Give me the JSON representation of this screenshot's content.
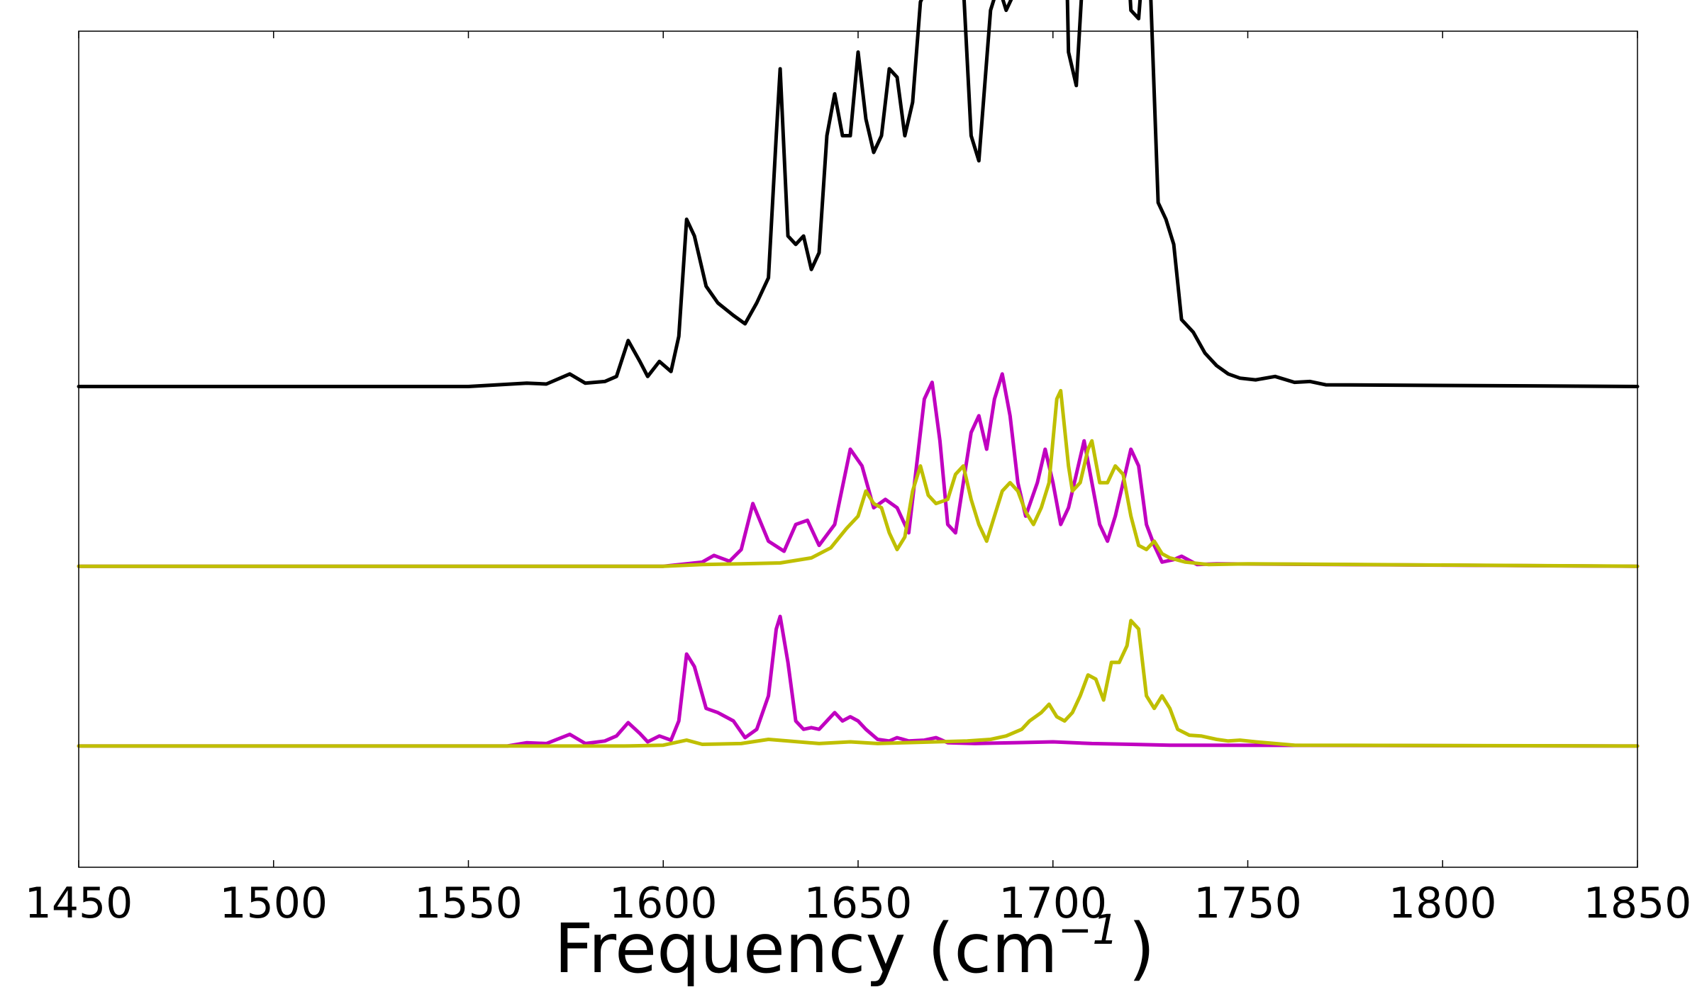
{
  "chart_data": {
    "type": "line",
    "title": "",
    "xlabel": "Frequency (cm",
    "xlabel_superscript": "−1",
    "xlabel_suffix": ")",
    "ylabel": "",
    "xlim": [
      1450,
      1850
    ],
    "ylim": [
      0,
      1
    ],
    "grid": false,
    "legend": "none",
    "x_ticks": [
      "1450",
      "1500",
      "1550",
      "1600",
      "1650",
      "1700",
      "1750",
      "1800",
      "1850"
    ],
    "colors": {
      "total": "#000000",
      "magenta": "#c000c0",
      "olive": "#bfbf00"
    },
    "series": [
      {
        "color": "#000000",
        "panel": "top",
        "baseline": 0.575,
        "points": [
          [
            1450,
            0
          ],
          [
            1550,
            0
          ],
          [
            1565,
            0.004
          ],
          [
            1570,
            0.003
          ],
          [
            1576,
            0.015
          ],
          [
            1580,
            0.004
          ],
          [
            1585,
            0.006
          ],
          [
            1588,
            0.012
          ],
          [
            1591,
            0.055
          ],
          [
            1594,
            0.03
          ],
          [
            1596,
            0.012
          ],
          [
            1599,
            0.03
          ],
          [
            1602,
            0.018
          ],
          [
            1604,
            0.06
          ],
          [
            1606,
            0.2
          ],
          [
            1608,
            0.18
          ],
          [
            1611,
            0.12
          ],
          [
            1614,
            0.1
          ],
          [
            1618,
            0.085
          ],
          [
            1621,
            0.075
          ],
          [
            1624,
            0.1
          ],
          [
            1627,
            0.13
          ],
          [
            1629,
            0.3
          ],
          [
            1630,
            0.38
          ],
          [
            1632,
            0.18
          ],
          [
            1634,
            0.17
          ],
          [
            1636,
            0.18
          ],
          [
            1638,
            0.14
          ],
          [
            1640,
            0.16
          ],
          [
            1642,
            0.3
          ],
          [
            1644,
            0.35
          ],
          [
            1646,
            0.3
          ],
          [
            1648,
            0.3
          ],
          [
            1650,
            0.4
          ],
          [
            1652,
            0.32
          ],
          [
            1654,
            0.28
          ],
          [
            1656,
            0.3
          ],
          [
            1658,
            0.38
          ],
          [
            1660,
            0.37
          ],
          [
            1662,
            0.3
          ],
          [
            1664,
            0.34
          ],
          [
            1666,
            0.46
          ],
          [
            1668,
            0.48
          ],
          [
            1670,
            0.52
          ],
          [
            1673,
            0.55
          ],
          [
            1675,
            0.59
          ],
          [
            1677,
            0.48
          ],
          [
            1679,
            0.3
          ],
          [
            1681,
            0.27
          ],
          [
            1684,
            0.45
          ],
          [
            1686,
            0.48
          ],
          [
            1688,
            0.45
          ],
          [
            1690,
            0.47
          ],
          [
            1693,
            0.5
          ],
          [
            1696,
            0.48
          ],
          [
            1698,
            0.53
          ],
          [
            1700,
            0.95
          ],
          [
            1702,
            0.85
          ],
          [
            1704,
            0.4
          ],
          [
            1706,
            0.36
          ],
          [
            1708,
            0.52
          ],
          [
            1710,
            0.6
          ],
          [
            1712,
            0.63
          ],
          [
            1714,
            0.62
          ],
          [
            1716,
            0.64
          ],
          [
            1718,
            0.61
          ],
          [
            1720,
            0.45
          ],
          [
            1722,
            0.44
          ],
          [
            1723,
            0.5
          ],
          [
            1725,
            0.48
          ],
          [
            1727,
            0.22
          ],
          [
            1729,
            0.2
          ],
          [
            1731,
            0.17
          ],
          [
            1733,
            0.08
          ],
          [
            1736,
            0.065
          ],
          [
            1739,
            0.04
          ],
          [
            1742,
            0.025
          ],
          [
            1745,
            0.015
          ],
          [
            1748,
            0.01
          ],
          [
            1752,
            0.008
          ],
          [
            1757,
            0.012
          ],
          [
            1762,
            0.005
          ],
          [
            1766,
            0.006
          ],
          [
            1770,
            0.002
          ],
          [
            1850,
            0
          ]
        ]
      },
      {
        "color": "#c000c0",
        "panel": "middle",
        "baseline": 0.36,
        "points": [
          [
            1450,
            0
          ],
          [
            1600,
            0
          ],
          [
            1610,
            0.005
          ],
          [
            1613,
            0.013
          ],
          [
            1617,
            0.006
          ],
          [
            1620,
            0.02
          ],
          [
            1623,
            0.075
          ],
          [
            1627,
            0.03
          ],
          [
            1631,
            0.018
          ],
          [
            1634,
            0.05
          ],
          [
            1637,
            0.055
          ],
          [
            1640,
            0.025
          ],
          [
            1644,
            0.05
          ],
          [
            1648,
            0.14
          ],
          [
            1651,
            0.12
          ],
          [
            1654,
            0.07
          ],
          [
            1657,
            0.08
          ],
          [
            1660,
            0.07
          ],
          [
            1663,
            0.04
          ],
          [
            1665,
            0.12
          ],
          [
            1667,
            0.2
          ],
          [
            1669,
            0.22
          ],
          [
            1671,
            0.15
          ],
          [
            1673,
            0.05
          ],
          [
            1675,
            0.04
          ],
          [
            1677,
            0.1
          ],
          [
            1679,
            0.16
          ],
          [
            1681,
            0.18
          ],
          [
            1683,
            0.14
          ],
          [
            1685,
            0.2
          ],
          [
            1687,
            0.23
          ],
          [
            1689,
            0.18
          ],
          [
            1691,
            0.1
          ],
          [
            1693,
            0.06
          ],
          [
            1696,
            0.1
          ],
          [
            1698,
            0.14
          ],
          [
            1700,
            0.1
          ],
          [
            1702,
            0.05
          ],
          [
            1704,
            0.07
          ],
          [
            1706,
            0.11
          ],
          [
            1708,
            0.15
          ],
          [
            1710,
            0.1
          ],
          [
            1712,
            0.05
          ],
          [
            1714,
            0.03
          ],
          [
            1716,
            0.06
          ],
          [
            1718,
            0.1
          ],
          [
            1720,
            0.14
          ],
          [
            1722,
            0.12
          ],
          [
            1724,
            0.05
          ],
          [
            1726,
            0.025
          ],
          [
            1728,
            0.005
          ],
          [
            1731,
            0.008
          ],
          [
            1733,
            0.012
          ],
          [
            1737,
            0.002
          ],
          [
            1742,
            0.003
          ],
          [
            1850,
            0
          ]
        ]
      },
      {
        "color": "#bfbf00",
        "panel": "middle",
        "baseline": 0.36,
        "points": [
          [
            1450,
            0
          ],
          [
            1600,
            0
          ],
          [
            1610,
            0.002
          ],
          [
            1620,
            0.003
          ],
          [
            1630,
            0.004
          ],
          [
            1638,
            0.01
          ],
          [
            1643,
            0.022
          ],
          [
            1647,
            0.045
          ],
          [
            1650,
            0.06
          ],
          [
            1652,
            0.09
          ],
          [
            1654,
            0.075
          ],
          [
            1656,
            0.07
          ],
          [
            1658,
            0.04
          ],
          [
            1660,
            0.02
          ],
          [
            1662,
            0.035
          ],
          [
            1664,
            0.09
          ],
          [
            1666,
            0.12
          ],
          [
            1668,
            0.085
          ],
          [
            1670,
            0.075
          ],
          [
            1673,
            0.08
          ],
          [
            1675,
            0.11
          ],
          [
            1677,
            0.12
          ],
          [
            1679,
            0.08
          ],
          [
            1681,
            0.05
          ],
          [
            1683,
            0.03
          ],
          [
            1685,
            0.06
          ],
          [
            1687,
            0.09
          ],
          [
            1689,
            0.1
          ],
          [
            1691,
            0.09
          ],
          [
            1693,
            0.065
          ],
          [
            1695,
            0.05
          ],
          [
            1697,
            0.07
          ],
          [
            1699,
            0.1
          ],
          [
            1701,
            0.2
          ],
          [
            1702,
            0.21
          ],
          [
            1704,
            0.12
          ],
          [
            1705,
            0.09
          ],
          [
            1707,
            0.1
          ],
          [
            1709,
            0.14
          ],
          [
            1710,
            0.15
          ],
          [
            1712,
            0.1
          ],
          [
            1714,
            0.1
          ],
          [
            1716,
            0.12
          ],
          [
            1718,
            0.11
          ],
          [
            1720,
            0.06
          ],
          [
            1722,
            0.025
          ],
          [
            1724,
            0.02
          ],
          [
            1726,
            0.03
          ],
          [
            1728,
            0.015
          ],
          [
            1730,
            0.01
          ],
          [
            1734,
            0.005
          ],
          [
            1740,
            0.002
          ],
          [
            1750,
            0.003
          ],
          [
            1850,
            0
          ]
        ]
      },
      {
        "color": "#c000c0",
        "panel": "bottom",
        "baseline": 0.145,
        "points": [
          [
            1450,
            0
          ],
          [
            1560,
            0
          ],
          [
            1565,
            0.004
          ],
          [
            1570,
            0.003
          ],
          [
            1576,
            0.014
          ],
          [
            1580,
            0.003
          ],
          [
            1585,
            0.006
          ],
          [
            1588,
            0.012
          ],
          [
            1591,
            0.028
          ],
          [
            1594,
            0.015
          ],
          [
            1596,
            0.005
          ],
          [
            1599,
            0.012
          ],
          [
            1602,
            0.007
          ],
          [
            1604,
            0.03
          ],
          [
            1606,
            0.11
          ],
          [
            1608,
            0.095
          ],
          [
            1611,
            0.045
          ],
          [
            1614,
            0.04
          ],
          [
            1618,
            0.03
          ],
          [
            1621,
            0.01
          ],
          [
            1624,
            0.02
          ],
          [
            1627,
            0.06
          ],
          [
            1629,
            0.14
          ],
          [
            1630,
            0.155
          ],
          [
            1632,
            0.1
          ],
          [
            1634,
            0.03
          ],
          [
            1636,
            0.02
          ],
          [
            1638,
            0.022
          ],
          [
            1640,
            0.02
          ],
          [
            1642,
            0.03
          ],
          [
            1644,
            0.04
          ],
          [
            1646,
            0.03
          ],
          [
            1648,
            0.035
          ],
          [
            1650,
            0.03
          ],
          [
            1652,
            0.02
          ],
          [
            1655,
            0.008
          ],
          [
            1658,
            0.006
          ],
          [
            1660,
            0.01
          ],
          [
            1663,
            0.006
          ],
          [
            1667,
            0.007
          ],
          [
            1670,
            0.01
          ],
          [
            1673,
            0.004
          ],
          [
            1680,
            0.003
          ],
          [
            1690,
            0.004
          ],
          [
            1700,
            0.005
          ],
          [
            1710,
            0.003
          ],
          [
            1720,
            0.002
          ],
          [
            1730,
            0.001
          ],
          [
            1850,
            0
          ]
        ]
      },
      {
        "color": "#bfbf00",
        "panel": "bottom",
        "baseline": 0.145,
        "points": [
          [
            1450,
            0
          ],
          [
            1590,
            0
          ],
          [
            1600,
            0.001
          ],
          [
            1606,
            0.007
          ],
          [
            1610,
            0.002
          ],
          [
            1620,
            0.003
          ],
          [
            1627,
            0.008
          ],
          [
            1632,
            0.006
          ],
          [
            1640,
            0.003
          ],
          [
            1648,
            0.005
          ],
          [
            1655,
            0.003
          ],
          [
            1662,
            0.004
          ],
          [
            1670,
            0.005
          ],
          [
            1678,
            0.006
          ],
          [
            1684,
            0.008
          ],
          [
            1688,
            0.012
          ],
          [
            1692,
            0.02
          ],
          [
            1694,
            0.03
          ],
          [
            1697,
            0.04
          ],
          [
            1699,
            0.05
          ],
          [
            1701,
            0.035
          ],
          [
            1703,
            0.03
          ],
          [
            1705,
            0.04
          ],
          [
            1707,
            0.06
          ],
          [
            1709,
            0.085
          ],
          [
            1711,
            0.08
          ],
          [
            1713,
            0.055
          ],
          [
            1715,
            0.1
          ],
          [
            1717,
            0.1
          ],
          [
            1719,
            0.12
          ],
          [
            1720,
            0.15
          ],
          [
            1722,
            0.14
          ],
          [
            1724,
            0.06
          ],
          [
            1726,
            0.045
          ],
          [
            1728,
            0.06
          ],
          [
            1730,
            0.045
          ],
          [
            1732,
            0.02
          ],
          [
            1735,
            0.013
          ],
          [
            1738,
            0.012
          ],
          [
            1742,
            0.008
          ],
          [
            1745,
            0.006
          ],
          [
            1748,
            0.007
          ],
          [
            1752,
            0.005
          ],
          [
            1757,
            0.003
          ],
          [
            1762,
            0.001
          ],
          [
            1850,
            0
          ]
        ]
      }
    ]
  }
}
